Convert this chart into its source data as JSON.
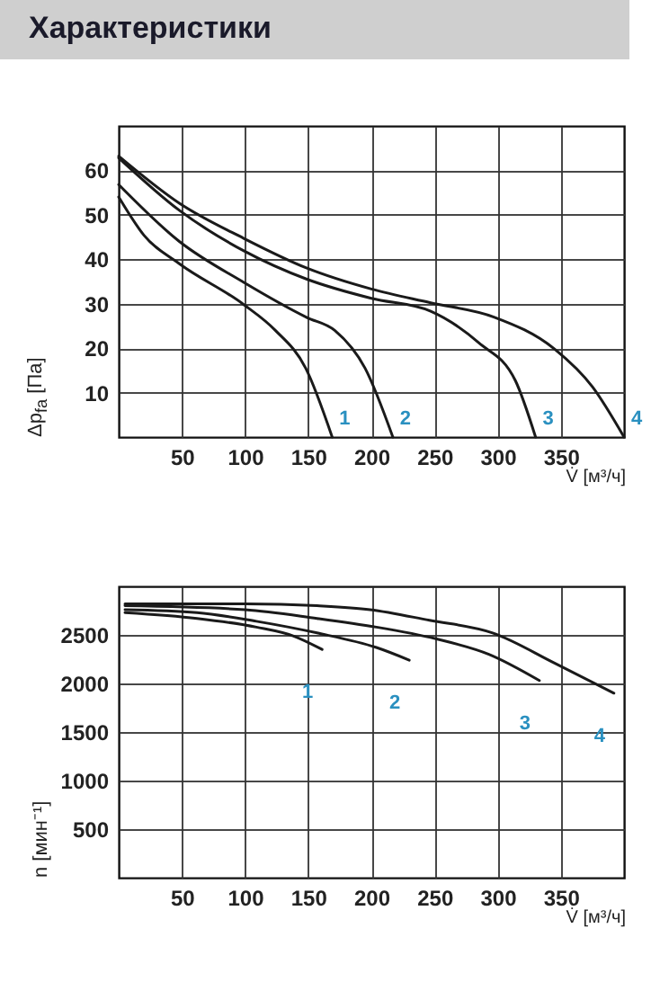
{
  "chart_data": [
    {
      "type": "line",
      "title": "Характеристики",
      "xlabel": "V̇ [м³/ч]",
      "ylabel": "Δp$_{fa}$ [Па]",
      "xlim": [
        0,
        400
      ],
      "xticks": [
        50,
        100,
        150,
        200,
        250,
        300,
        350
      ],
      "ylim": [
        0,
        70
      ],
      "yticks": [
        10,
        20,
        30,
        40,
        50,
        60
      ],
      "grid": true,
      "legend": false,
      "marker": "none",
      "line_style": "solid",
      "series": [
        {
          "name": "1",
          "color": "#1a1a1a",
          "x": [
            0,
            20,
            48,
            99,
            124,
            148,
            169
          ],
          "values": [
            54,
            45.4,
            39,
            29.8,
            24,
            15.5,
            0
          ]
        },
        {
          "name": "2",
          "color": "#1a1a1a",
          "x": [
            0,
            48,
            99,
            149,
            171,
            195,
            217
          ],
          "values": [
            56.8,
            44,
            34.8,
            26.9,
            24,
            15.5,
            0
          ]
        },
        {
          "name": "3",
          "color": "#1a1a1a",
          "x": [
            0,
            48,
            99,
            149,
            200,
            247,
            285,
            314,
            330
          ],
          "values": [
            62.8,
            51,
            41.9,
            35.5,
            31.2,
            28.3,
            21.2,
            12.7,
            0
          ]
        },
        {
          "name": "4",
          "color": "#1a1a1a",
          "x": [
            0,
            48,
            99,
            149,
            200,
            247,
            297,
            345,
            375,
            400
          ],
          "values": [
            63.2,
            52.6,
            44.7,
            38,
            33.3,
            30.2,
            27,
            19.8,
            11.3,
            0
          ]
        }
      ]
    },
    {
      "type": "line",
      "xlabel": "V̇ [м³/ч]",
      "ylabel": "n [мин⁻¹]",
      "xlim": [
        0,
        400
      ],
      "xticks": [
        50,
        100,
        150,
        200,
        250,
        300,
        350
      ],
      "ylim": [
        0,
        3000
      ],
      "yticks": [
        500,
        1000,
        1500,
        2000,
        2500
      ],
      "grid": true,
      "legend": false,
      "marker": "none",
      "line_style": "solid",
      "series": [
        {
          "name": "1",
          "color": "#1a1a1a",
          "x": [
            5,
            62,
            109,
            138,
            161
          ],
          "values": [
            2730,
            2670,
            2580,
            2490,
            2350
          ]
        },
        {
          "name": "2",
          "color": "#1a1a1a",
          "x": [
            5,
            62,
            109,
            157,
            204,
            230
          ],
          "values": [
            2760,
            2730,
            2640,
            2520,
            2370,
            2240
          ]
        },
        {
          "name": "3",
          "color": "#1a1a1a",
          "x": [
            5,
            100,
            157,
            204,
            251,
            293,
            333
          ],
          "values": [
            2800,
            2760,
            2670,
            2580,
            2460,
            2300,
            2030
          ]
        },
        {
          "name": "4",
          "color": "#1a1a1a",
          "x": [
            5,
            100,
            157,
            199,
            246,
            296,
            345,
            392
          ],
          "values": [
            2820,
            2820,
            2800,
            2760,
            2650,
            2520,
            2210,
            1900
          ]
        }
      ]
    }
  ]
}
